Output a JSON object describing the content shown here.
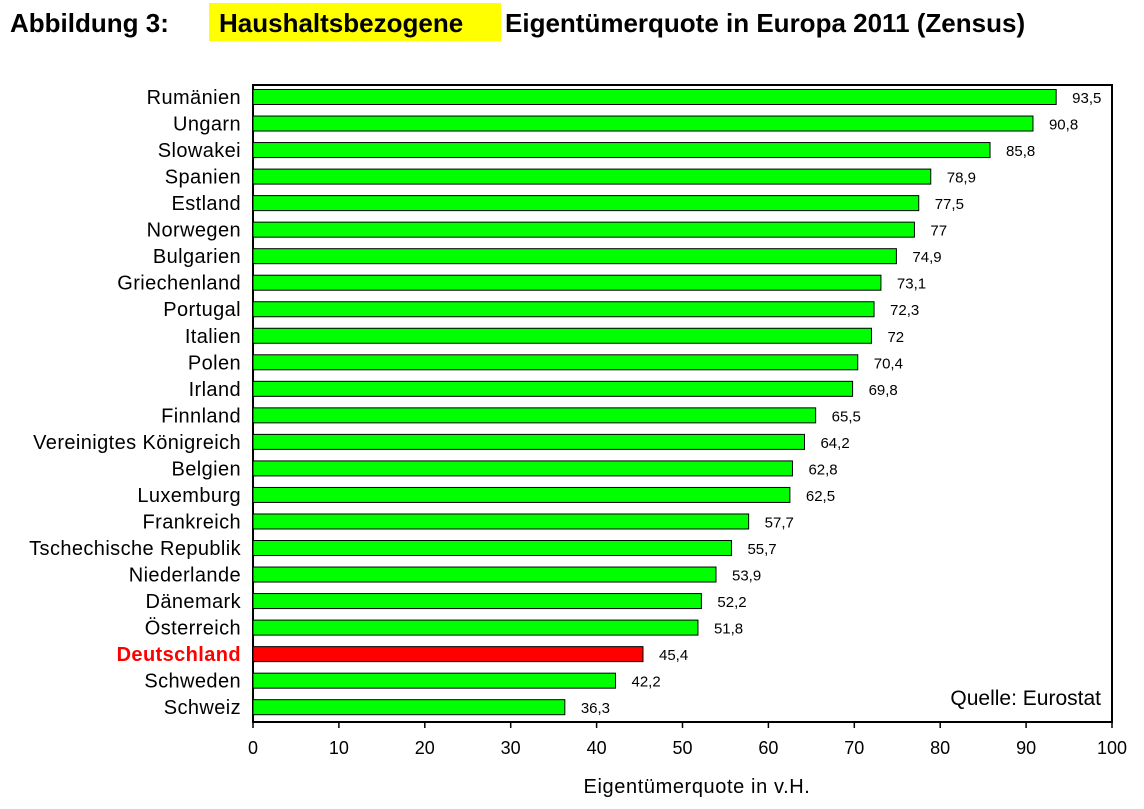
{
  "chart_data": {
    "type": "bar",
    "orientation": "horizontal",
    "title_prefix": "Abbildung 3:",
    "title_highlight": "Haushaltsbezogene",
    "title_rest": "Eigentümerquote in Europa 2011 (Zensus)",
    "categories": [
      "Rumänien",
      "Ungarn",
      "Slowakei",
      "Spanien",
      "Estland",
      "Norwegen",
      "Bulgarien",
      "Griechenland",
      "Portugal",
      "Italien",
      "Polen",
      "Irland",
      "Finnland",
      "Vereinigtes Königreich",
      "Belgien",
      "Luxemburg",
      "Frankreich",
      "Tschechische Republik",
      "Niederlande",
      "Dänemark",
      "Österreich",
      "Deutschland",
      "Schweden",
      "Schweiz"
    ],
    "values": [
      93.5,
      90.8,
      85.8,
      78.9,
      77.5,
      77,
      74.9,
      73.1,
      72.3,
      72,
      70.4,
      69.8,
      65.5,
      64.2,
      62.8,
      62.5,
      57.7,
      55.7,
      53.9,
      52.2,
      51.8,
      45.4,
      42.2,
      36.3
    ],
    "value_labels": [
      "93,5",
      "90,8",
      "85,8",
      "78,9",
      "77,5",
      "77",
      "74,9",
      "73,1",
      "72,3",
      "72",
      "70,4",
      "69,8",
      "65,5",
      "64,2",
      "62,8",
      "62,5",
      "57,7",
      "55,7",
      "53,9",
      "52,2",
      "51,8",
      "45,4",
      "42,2",
      "36,3"
    ],
    "highlight_category": "Deutschland",
    "xlabel": "Eigentümerquote in v.H.",
    "xlim": [
      0,
      100
    ],
    "xticks": [
      0,
      10,
      20,
      30,
      40,
      50,
      60,
      70,
      80,
      90,
      100
    ],
    "source_note": "Quelle: Eurostat",
    "grid": false,
    "colors": {
      "bar": "#00ff00",
      "highlight": "#ff0000",
      "title_highlight_bg": "#ffff00",
      "bar_stroke": "#000000"
    }
  }
}
